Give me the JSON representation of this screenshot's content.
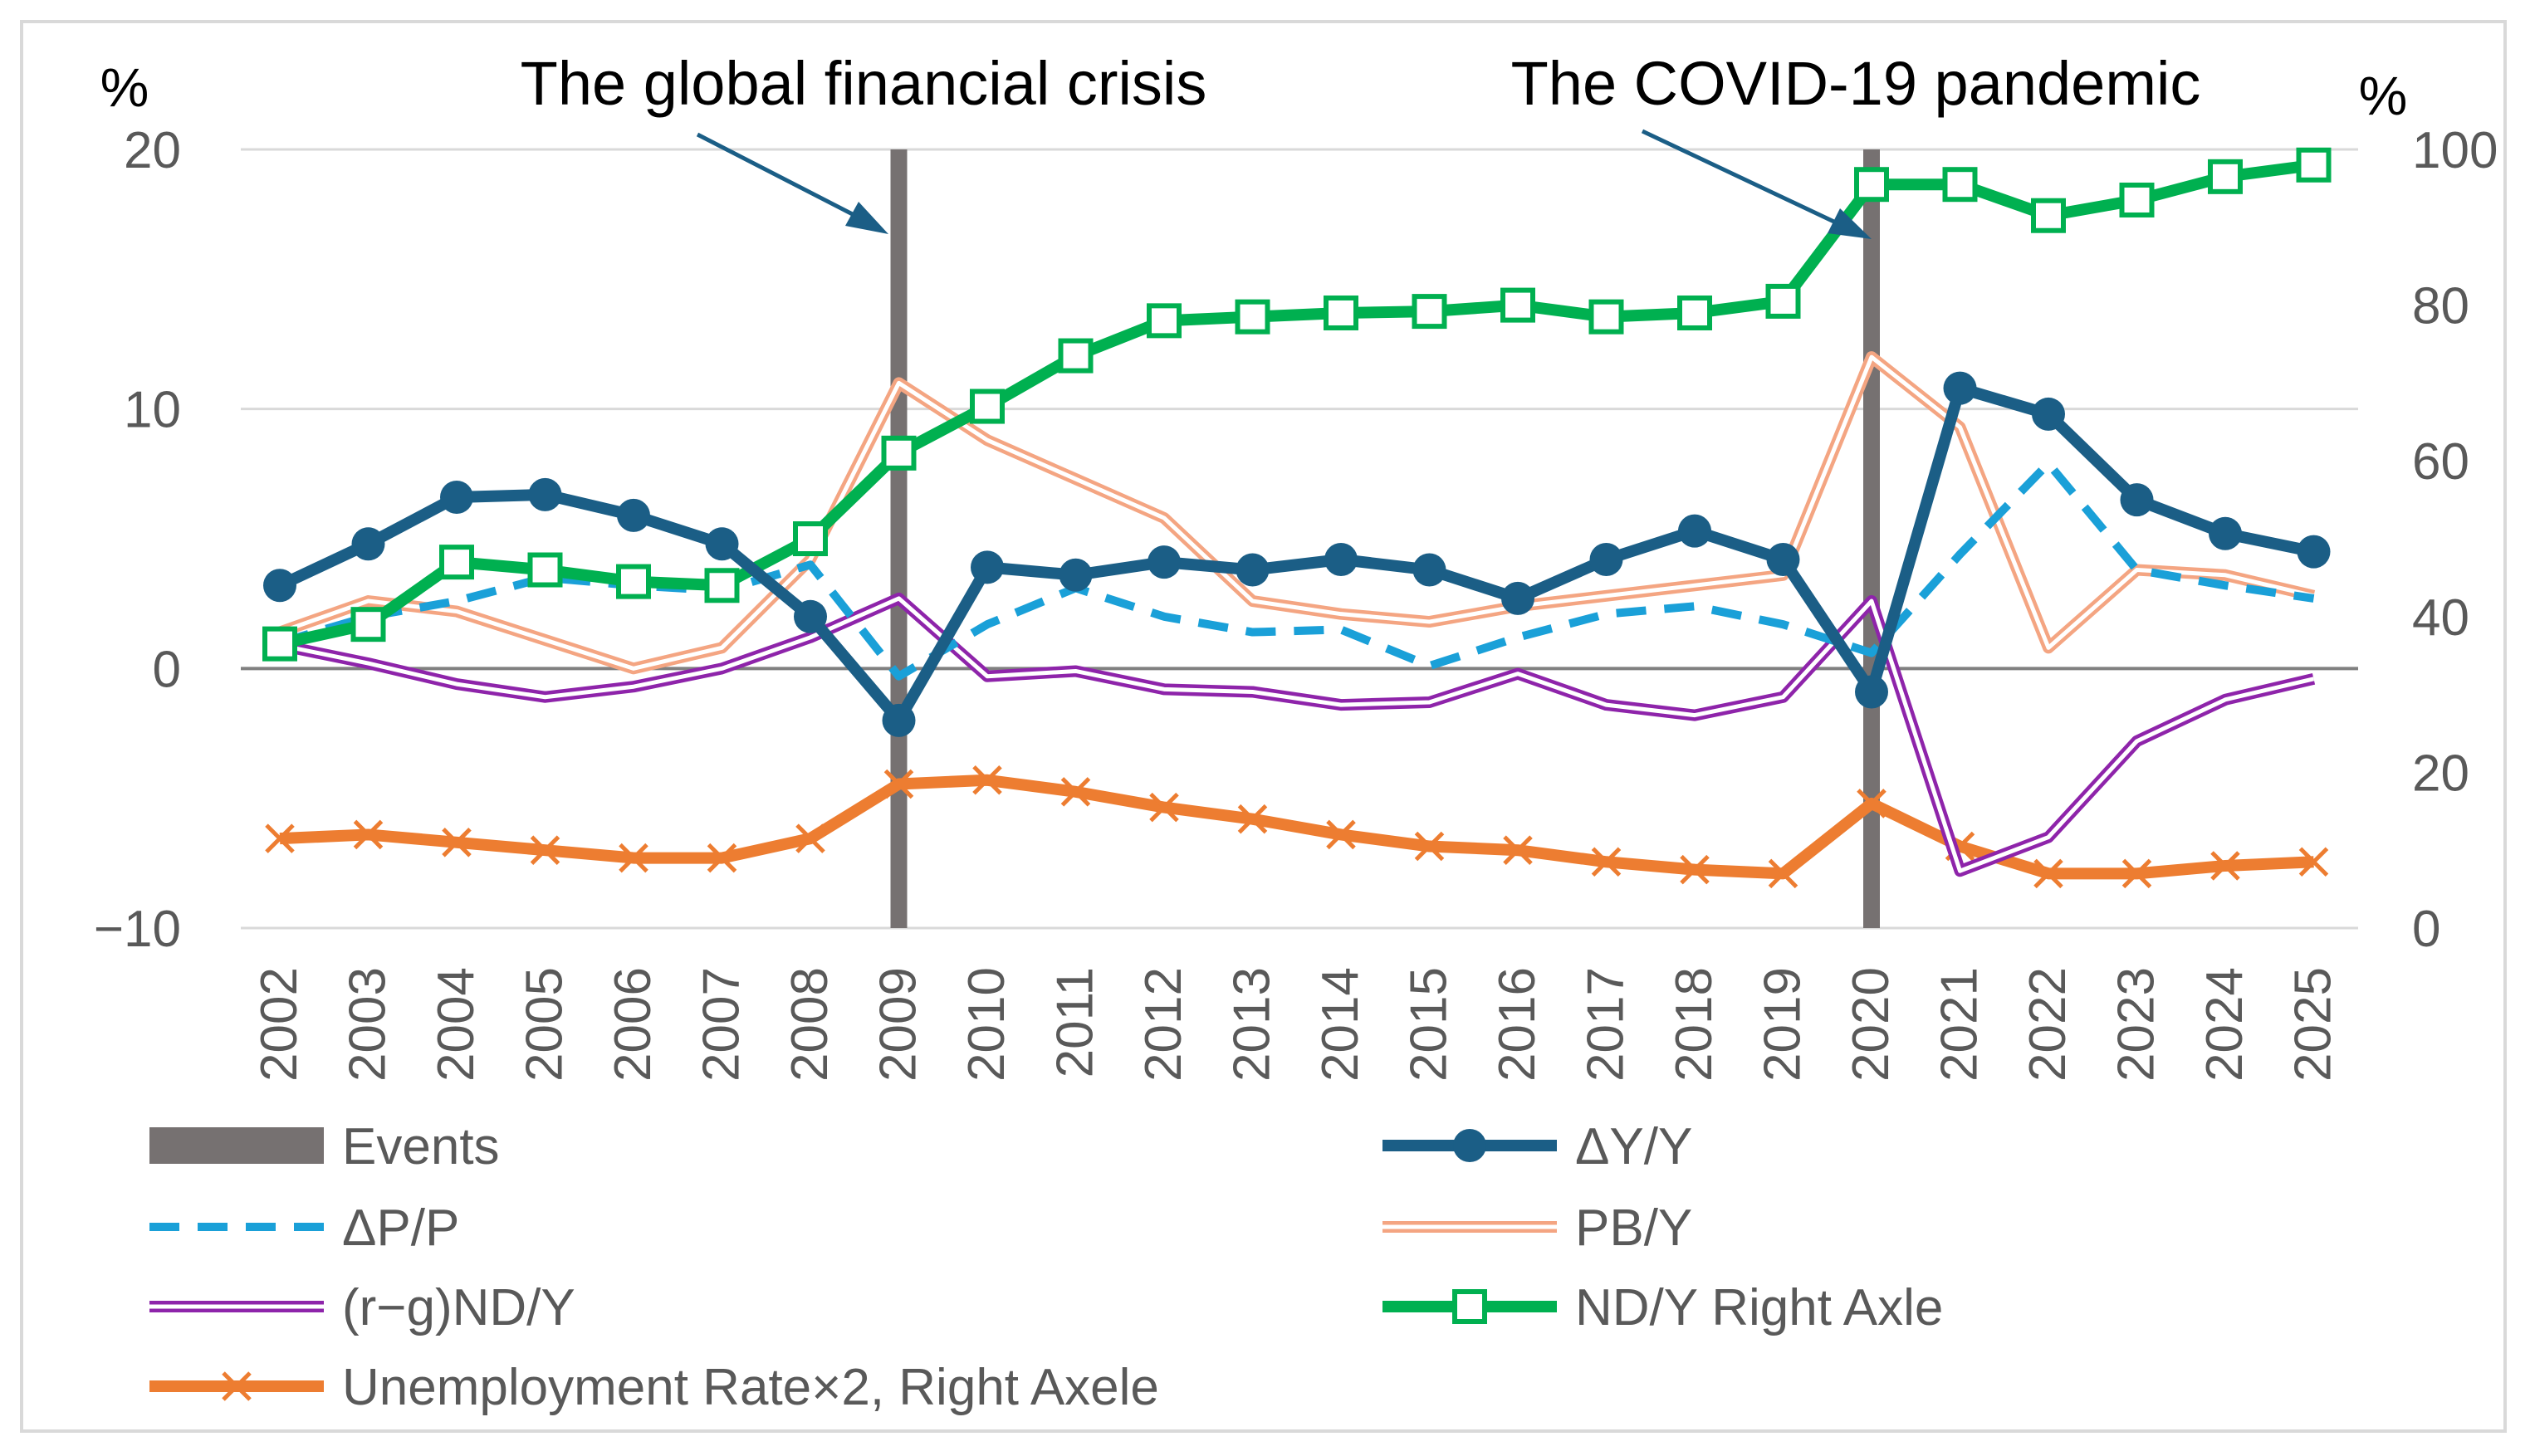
{
  "chart_data": {
    "type": "line",
    "left_axis_unit": "%",
    "right_axis_unit": "%",
    "left_ticks": [
      "20",
      "10",
      "0",
      "−10"
    ],
    "right_ticks": [
      "100",
      "80",
      "60",
      "40",
      "20",
      "0"
    ],
    "ylim_left": [
      -10,
      20
    ],
    "ylim_right": [
      0,
      100
    ],
    "x": [
      "2002",
      "2003",
      "2004",
      "2005",
      "2006",
      "2007",
      "2008",
      "2009",
      "2010",
      "2011",
      "2012",
      "2013",
      "2014",
      "2015",
      "2016",
      "2017",
      "2018",
      "2019",
      "2020",
      "2021",
      "2022",
      "2023",
      "2024",
      "2025"
    ],
    "annotations": [
      {
        "text": "The global financial crisis",
        "year": "2009"
      },
      {
        "text": "The COVID-19 pandemic",
        "year": "2020"
      }
    ],
    "legend_position": "bottom",
    "series": [
      {
        "key": "events",
        "name": "Events",
        "style": "bar",
        "color": "#767171",
        "years": [
          "2009",
          "2020"
        ]
      },
      {
        "key": "dy",
        "name": "ΔY/Y",
        "axis": "left",
        "color": "#1B5E86",
        "style": "solid-circle",
        "values": [
          3.2,
          4.8,
          6.6,
          6.7,
          5.9,
          4.8,
          2.0,
          -2.0,
          3.9,
          3.6,
          4.1,
          3.8,
          4.2,
          3.8,
          2.7,
          4.2,
          5.3,
          4.2,
          -0.9,
          10.8,
          9.8,
          6.5,
          5.2,
          4.5
        ]
      },
      {
        "key": "dp",
        "name": "ΔP/P",
        "axis": "left",
        "color": "#1AA0D8",
        "style": "dashed",
        "values": [
          1.0,
          2.0,
          2.6,
          3.5,
          3.2,
          3.0,
          4.0,
          -0.3,
          1.7,
          3.1,
          2.0,
          1.4,
          1.5,
          0.1,
          1.2,
          2.1,
          2.4,
          1.7,
          0.6,
          4.4,
          7.9,
          3.8,
          3.2,
          2.7
        ]
      },
      {
        "key": "pb",
        "name": "PB/Y",
        "axis": "left",
        "color": "#F4A582",
        "style": "double",
        "values": [
          1.4,
          2.6,
          2.2,
          1.1,
          0.0,
          0.8,
          4.2,
          11.0,
          8.8,
          7.3,
          5.8,
          2.6,
          2.1,
          1.8,
          2.4,
          2.8,
          3.2,
          3.6,
          12.0,
          9.3,
          0.8,
          3.8,
          3.6,
          2.8
        ]
      },
      {
        "key": "rg",
        "name": "(r−g)ND/Y",
        "axis": "left",
        "color": "#8E24AA",
        "style": "double",
        "values": [
          0.9,
          0.2,
          -0.6,
          -1.1,
          -0.7,
          0.0,
          1.2,
          2.7,
          -0.3,
          -0.1,
          -0.8,
          -0.9,
          -1.4,
          -1.3,
          -0.2,
          -1.4,
          -1.8,
          -1.1,
          2.6,
          -7.8,
          -6.5,
          -2.8,
          -1.2,
          -0.4
        ]
      },
      {
        "key": "nd",
        "name": "ND/Y Right Axle",
        "axis": "right",
        "color": "#00B050",
        "style": "solid-square",
        "values": [
          36.5,
          39.0,
          47.0,
          46.0,
          44.5,
          44.0,
          50.0,
          61.0,
          67.0,
          73.5,
          78.0,
          78.5,
          79.0,
          79.2,
          80.0,
          78.5,
          79.0,
          80.5,
          95.5,
          95.5,
          91.5,
          93.5,
          96.5,
          98.0
        ]
      },
      {
        "key": "ur",
        "name": "Unemployment Rate×2, Right Axele",
        "axis": "right",
        "color": "#ED7D31",
        "style": "solid-x",
        "values": [
          11.5,
          12.0,
          11.0,
          10.0,
          9.0,
          9.0,
          11.5,
          18.5,
          19.0,
          17.5,
          15.5,
          14.0,
          12.0,
          10.5,
          10.0,
          8.5,
          7.5,
          7.0,
          16.0,
          10.5,
          7.0,
          7.0,
          8.0,
          8.5
        ]
      }
    ]
  }
}
